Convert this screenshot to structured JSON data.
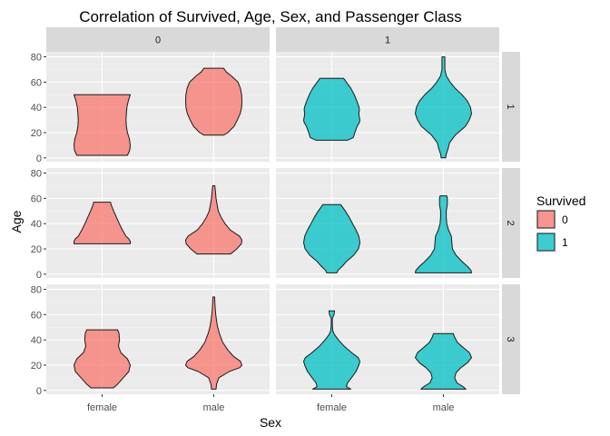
{
  "chart_data": {
    "type": "violin",
    "title": "Correlation of Survived, Age, Sex, and Passenger Class",
    "xlabel": "Sex",
    "ylabel": "Age",
    "categories": [
      "female",
      "male"
    ],
    "column_facets": [
      "0",
      "1"
    ],
    "row_facets": [
      "1",
      "2",
      "3"
    ],
    "y_ticks": [
      0,
      20,
      40,
      60,
      80
    ],
    "ylim": [
      -3,
      84
    ],
    "grid": true,
    "legend": {
      "title": "Survived",
      "placement": "right",
      "items": [
        {
          "label": "0",
          "color": "#F8766D"
        },
        {
          "label": "1",
          "color": "#00BFC4"
        }
      ]
    },
    "violins": [
      {
        "class": "1",
        "survived": "0",
        "sex": "female",
        "profile": [
          [
            2,
            0.9
          ],
          [
            6,
            0.98
          ],
          [
            10,
            1.0
          ],
          [
            15,
            0.97
          ],
          [
            20,
            0.9
          ],
          [
            25,
            0.86
          ],
          [
            30,
            0.85
          ],
          [
            35,
            0.86
          ],
          [
            40,
            0.88
          ],
          [
            45,
            0.93
          ],
          [
            50,
            1.0
          ]
        ]
      },
      {
        "class": "1",
        "survived": "0",
        "sex": "male",
        "profile": [
          [
            18,
            0.35
          ],
          [
            20,
            0.5
          ],
          [
            25,
            0.72
          ],
          [
            30,
            0.84
          ],
          [
            35,
            0.94
          ],
          [
            40,
            0.99
          ],
          [
            45,
            1.0
          ],
          [
            50,
            0.99
          ],
          [
            55,
            0.95
          ],
          [
            60,
            0.86
          ],
          [
            65,
            0.62
          ],
          [
            68,
            0.45
          ],
          [
            71,
            0.35
          ]
        ]
      },
      {
        "class": "1",
        "survived": "1",
        "sex": "female",
        "profile": [
          [
            14,
            0.55
          ],
          [
            16,
            0.76
          ],
          [
            20,
            0.82
          ],
          [
            25,
            0.9
          ],
          [
            28,
            0.98
          ],
          [
            30,
            1.0
          ],
          [
            32,
            0.98
          ],
          [
            35,
            0.96
          ],
          [
            38,
            0.98
          ],
          [
            40,
            0.97
          ],
          [
            45,
            0.89
          ],
          [
            50,
            0.8
          ],
          [
            55,
            0.68
          ],
          [
            60,
            0.52
          ],
          [
            63,
            0.42
          ]
        ]
      },
      {
        "class": "1",
        "survived": "1",
        "sex": "male",
        "profile": [
          [
            0,
            0.08
          ],
          [
            3,
            0.1
          ],
          [
            7,
            0.16
          ],
          [
            12,
            0.22
          ],
          [
            18,
            0.42
          ],
          [
            25,
            0.78
          ],
          [
            30,
            0.92
          ],
          [
            35,
            1.0
          ],
          [
            40,
            0.96
          ],
          [
            45,
            0.85
          ],
          [
            50,
            0.66
          ],
          [
            55,
            0.42
          ],
          [
            60,
            0.24
          ],
          [
            65,
            0.1
          ],
          [
            70,
            0.05
          ],
          [
            75,
            0.05
          ],
          [
            80,
            0.05
          ]
        ]
      },
      {
        "class": "2",
        "survived": "0",
        "sex": "female",
        "profile": [
          [
            24,
            1.0
          ],
          [
            26,
            1.0
          ],
          [
            28,
            0.95
          ],
          [
            30,
            0.85
          ],
          [
            35,
            0.72
          ],
          [
            40,
            0.61
          ],
          [
            45,
            0.51
          ],
          [
            50,
            0.41
          ],
          [
            55,
            0.32
          ],
          [
            57,
            0.3
          ]
        ]
      },
      {
        "class": "2",
        "survived": "0",
        "sex": "male",
        "profile": [
          [
            16,
            0.6
          ],
          [
            20,
            0.82
          ],
          [
            24,
            0.98
          ],
          [
            27,
            1.0
          ],
          [
            30,
            0.92
          ],
          [
            35,
            0.58
          ],
          [
            40,
            0.4
          ],
          [
            45,
            0.26
          ],
          [
            50,
            0.16
          ],
          [
            55,
            0.12
          ],
          [
            60,
            0.08
          ],
          [
            65,
            0.06
          ],
          [
            70,
            0.04
          ]
        ]
      },
      {
        "class": "2",
        "survived": "1",
        "sex": "female",
        "profile": [
          [
            1,
            0.18
          ],
          [
            3,
            0.22
          ],
          [
            6,
            0.36
          ],
          [
            10,
            0.52
          ],
          [
            15,
            0.78
          ],
          [
            20,
            0.95
          ],
          [
            25,
            1.0
          ],
          [
            30,
            0.96
          ],
          [
            35,
            0.86
          ],
          [
            40,
            0.74
          ],
          [
            45,
            0.62
          ],
          [
            50,
            0.48
          ],
          [
            55,
            0.32
          ]
        ]
      },
      {
        "class": "2",
        "survived": "1",
        "sex": "male",
        "profile": [
          [
            1,
            1.0
          ],
          [
            3,
            0.98
          ],
          [
            6,
            0.86
          ],
          [
            10,
            0.66
          ],
          [
            15,
            0.45
          ],
          [
            20,
            0.32
          ],
          [
            25,
            0.3
          ],
          [
            30,
            0.28
          ],
          [
            35,
            0.18
          ],
          [
            40,
            0.12
          ],
          [
            45,
            0.1
          ],
          [
            50,
            0.1
          ],
          [
            55,
            0.14
          ],
          [
            60,
            0.14
          ],
          [
            62,
            0.12
          ]
        ]
      },
      {
        "class": "3",
        "survived": "0",
        "sex": "female",
        "profile": [
          [
            2,
            0.4
          ],
          [
            5,
            0.55
          ],
          [
            10,
            0.75
          ],
          [
            15,
            0.95
          ],
          [
            20,
            1.0
          ],
          [
            25,
            0.9
          ],
          [
            30,
            0.66
          ],
          [
            35,
            0.58
          ],
          [
            40,
            0.62
          ],
          [
            45,
            0.6
          ],
          [
            48,
            0.55
          ]
        ]
      },
      {
        "class": "3",
        "survived": "0",
        "sex": "male",
        "profile": [
          [
            1,
            0.08
          ],
          [
            5,
            0.1
          ],
          [
            10,
            0.18
          ],
          [
            15,
            0.55
          ],
          [
            18,
            0.92
          ],
          [
            20,
            1.0
          ],
          [
            23,
            0.95
          ],
          [
            27,
            0.7
          ],
          [
            32,
            0.5
          ],
          [
            38,
            0.32
          ],
          [
            45,
            0.2
          ],
          [
            50,
            0.14
          ],
          [
            55,
            0.1
          ],
          [
            60,
            0.07
          ],
          [
            65,
            0.05
          ],
          [
            70,
            0.04
          ],
          [
            74,
            0.03
          ]
        ]
      },
      {
        "class": "3",
        "survived": "1",
        "sex": "female",
        "profile": [
          [
            1,
            0.68
          ],
          [
            3,
            0.52
          ],
          [
            6,
            0.56
          ],
          [
            10,
            0.7
          ],
          [
            15,
            0.86
          ],
          [
            20,
            0.96
          ],
          [
            23,
            1.0
          ],
          [
            26,
            0.94
          ],
          [
            30,
            0.7
          ],
          [
            35,
            0.44
          ],
          [
            40,
            0.24
          ],
          [
            44,
            0.1
          ],
          [
            47,
            0.04
          ],
          [
            52,
            0.02
          ],
          [
            57,
            0.02
          ],
          [
            60,
            0.08
          ],
          [
            63,
            0.1
          ]
        ]
      },
      {
        "class": "3",
        "survived": "1",
        "sex": "male",
        "profile": [
          [
            1,
            0.8
          ],
          [
            3,
            0.7
          ],
          [
            6,
            0.48
          ],
          [
            10,
            0.4
          ],
          [
            14,
            0.45
          ],
          [
            18,
            0.62
          ],
          [
            22,
            0.86
          ],
          [
            26,
            1.0
          ],
          [
            30,
            0.92
          ],
          [
            34,
            0.7
          ],
          [
            38,
            0.5
          ],
          [
            42,
            0.4
          ],
          [
            45,
            0.35
          ]
        ]
      }
    ]
  }
}
